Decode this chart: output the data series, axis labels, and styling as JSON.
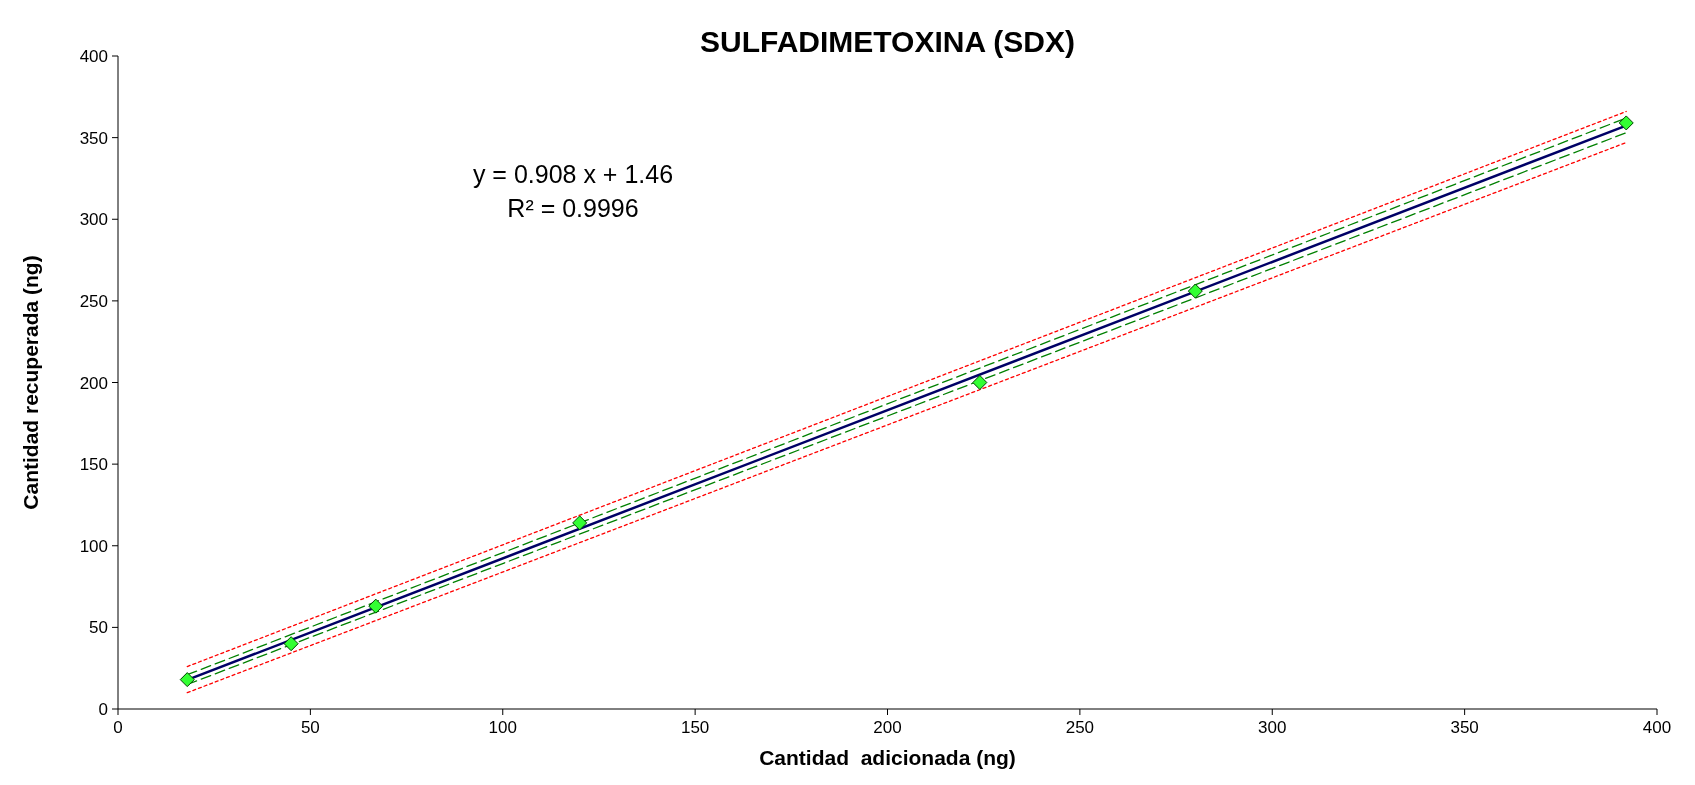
{
  "chart_data": {
    "type": "scatter",
    "title": "SULFADIMETOXINA (SDX)",
    "xlabel": "Cantidad  adicionada (ng)",
    "ylabel": "Cantidad recuperada (ng)",
    "annotations": [
      "y = 0.908 x + 1.46",
      "R² = 0.9996"
    ],
    "xlim": [
      0,
      400
    ],
    "xticks": [
      0,
      50,
      100,
      150,
      200,
      250,
      300,
      350,
      400
    ],
    "ylim": [
      0,
      400
    ],
    "yticks": [
      0,
      50,
      100,
      150,
      200,
      250,
      300,
      350,
      400
    ],
    "grid": false,
    "series": [
      {
        "type": "line",
        "color": "#ff0000",
        "line_style": "dotted",
        "x": [
          18,
          392
        ],
        "values": [
          26,
          366
        ]
      },
      {
        "type": "line",
        "color": "#ff0000",
        "line_style": "dotted",
        "x": [
          18,
          392
        ],
        "values": [
          10,
          347
        ]
      },
      {
        "type": "line",
        "color": "#008000",
        "line_style": "dashed",
        "x": [
          18,
          392
        ],
        "values": [
          21,
          362
        ]
      },
      {
        "type": "line",
        "color": "#008000",
        "line_style": "dashed",
        "x": [
          18,
          392
        ],
        "values": [
          15,
          353
        ]
      },
      {
        "type": "line",
        "color": "#000066",
        "line_style": "solid",
        "x": [
          18,
          392
        ],
        "values": [
          17.8,
          357.4
        ]
      },
      {
        "color": "#33ff33",
        "marker": "diamond",
        "x": [
          18,
          45,
          67,
          120,
          224,
          280,
          392
        ],
        "values": [
          18,
          40,
          63,
          114,
          200,
          256,
          359
        ]
      }
    ]
  }
}
